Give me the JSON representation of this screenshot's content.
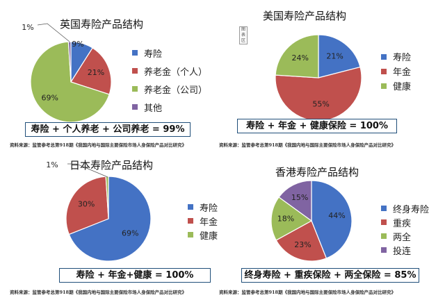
{
  "chart_data": [
    {
      "type": "pie",
      "title": "英国寿险产品结构",
      "colors": [
        "#4472c4",
        "#c0504d",
        "#9bbb59",
        "#8064a2"
      ],
      "series": [
        {
          "categories": [
            "寿险",
            "养老金（个人）",
            "养老金（公司）",
            "其他"
          ],
          "values": [
            9,
            21,
            69,
            1
          ],
          "labels": [
            "9%",
            "21%",
            "69%",
            "1%"
          ]
        }
      ],
      "legend": "right",
      "formula": "寿险 + 个人养老 + 公司养老 = 99%",
      "source": "资料来源：监管参考总第918期《我国内地与国际主要保险市场人身保险产品对比研究》"
    },
    {
      "type": "pie",
      "title": "美国寿险产品结构",
      "tag": "图表区",
      "colors": [
        "#4472c4",
        "#c0504d",
        "#9bbb59"
      ],
      "series": [
        {
          "categories": [
            "寿险",
            "年金",
            "健康"
          ],
          "values": [
            21,
            55,
            24
          ],
          "labels": [
            "21%",
            "55%",
            "24%"
          ]
        }
      ],
      "legend": "right",
      "formula": "寿险 + 年金 + 健康保险 = 100%",
      "source": "资料来源：监管参考总第918期《我国内地与国际主要保险市场人身保险产品对比研究》"
    },
    {
      "type": "pie",
      "title": "日本寿险产品结构",
      "colors": [
        "#4472c4",
        "#c0504d",
        "#9bbb59"
      ],
      "series": [
        {
          "categories": [
            "寿险",
            "年金",
            "健康"
          ],
          "values": [
            69,
            30,
            1
          ],
          "labels": [
            "69%",
            "30%",
            "1%"
          ]
        }
      ],
      "legend": "right",
      "formula": "寿险 + 年金+健康 = 100%",
      "source": "资料来源：监管参考总第918期《我国内地与国际主要保险市场人身保险产品对比研究》"
    },
    {
      "type": "pie",
      "title": "香港寿险产品结构",
      "colors": [
        "#4472c4",
        "#c0504d",
        "#9bbb59",
        "#8064a2"
      ],
      "series": [
        {
          "categories": [
            "终身寿险",
            "重疾",
            "两全",
            "投连"
          ],
          "values": [
            44,
            23,
            18,
            15
          ],
          "labels": [
            "44%",
            "23%",
            "18%",
            "15%"
          ]
        }
      ],
      "legend": "right",
      "formula": "终身寿险 + 重疾保险 + 两全保险 = 85%",
      "source": "资料来源：监管参考总第918期《我国内地与国际主要保险市场人身保险产品对比研究》"
    }
  ]
}
